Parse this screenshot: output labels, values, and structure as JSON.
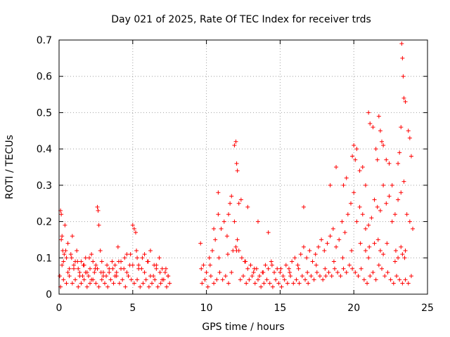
{
  "chart_data": {
    "type": "scatter",
    "title": "Day 021 of 2025, Rate Of TEC Index for receiver trds",
    "xlabel": "GPS time / hours",
    "ylabel": "ROTI / TECUs",
    "xlim": [
      0,
      25
    ],
    "ylim": [
      0,
      0.7
    ],
    "xticks": [
      0,
      5,
      10,
      15,
      20,
      25
    ],
    "xtick_labels": [
      "0",
      "5",
      "10",
      "15",
      "20",
      "25"
    ],
    "yticks": [
      0,
      0.1,
      0.2,
      0.3,
      0.4,
      0.5,
      0.6,
      0.7
    ],
    "ytick_labels": [
      "0",
      "0.1",
      "0.2",
      "0.3",
      "0.4",
      "0.5",
      "0.6",
      "0.7"
    ],
    "grid": true,
    "marker": "+",
    "series": [
      {
        "name": "ROTI",
        "color": "#ff0000",
        "x": [
          0.05,
          0.1,
          0.15,
          0.2,
          0.25,
          0.3,
          0.35,
          0.4,
          0.5,
          0.6,
          0.7,
          0.8,
          0.9,
          1.0,
          1.1,
          1.2,
          1.3,
          1.4,
          1.5,
          1.6,
          1.7,
          1.8,
          1.9,
          2.0,
          2.1,
          2.2,
          2.3,
          2.4,
          2.5,
          2.6,
          2.65,
          2.7,
          2.8,
          2.9,
          3.0,
          3.2,
          3.4,
          3.6,
          3.8,
          3.9,
          4.0,
          4.2,
          4.4,
          4.6,
          4.8,
          5.0,
          5.1,
          5.2,
          5.3,
          5.4,
          5.6,
          5.8,
          6.0,
          6.2,
          6.4,
          6.6,
          6.8,
          7.0,
          7.2,
          7.4,
          0.1,
          0.3,
          0.5,
          0.7,
          0.9,
          1.1,
          1.3,
          1.5,
          1.7,
          1.9,
          2.1,
          2.3,
          2.5,
          2.7,
          2.9,
          3.1,
          3.3,
          3.5,
          3.7,
          3.9,
          4.1,
          4.3,
          4.5,
          4.7,
          4.9,
          5.1,
          5.3,
          5.5,
          5.7,
          5.9,
          6.1,
          6.3,
          6.5,
          6.7,
          6.9,
          7.1,
          7.3,
          7.5,
          0.2,
          0.6,
          1.0,
          1.4,
          1.8,
          2.2,
          2.6,
          3.0,
          3.4,
          3.8,
          4.2,
          4.6,
          5.0,
          5.4,
          5.8,
          6.2,
          6.6,
          7.0,
          7.4,
          0.15,
          0.45,
          0.85,
          1.25,
          1.65,
          2.05,
          2.45,
          2.85,
          3.25,
          3.65,
          4.05,
          4.45,
          4.85,
          5.25,
          5.65,
          6.05,
          6.45,
          6.85,
          7.25,
          9.6,
          9.8,
          10.0,
          10.2,
          10.4,
          10.6,
          10.8,
          11.0,
          11.2,
          11.4,
          11.6,
          11.8,
          11.9,
          12.0,
          12.1,
          12.2,
          12.4,
          12.6,
          12.8,
          13.0,
          13.2,
          13.4,
          13.6,
          13.8,
          14.0,
          14.2,
          14.4,
          14.6,
          14.8,
          15.0,
          15.2,
          15.4,
          15.6,
          15.8,
          16.0,
          16.2,
          16.4,
          16.6,
          16.8,
          17.0,
          17.2,
          17.4,
          17.6,
          17.8,
          18.0,
          18.2,
          18.4,
          18.6,
          18.8,
          19.0,
          19.2,
          19.4,
          19.6,
          19.8,
          20.0,
          20.2,
          20.4,
          20.6,
          20.8,
          21.0,
          21.2,
          21.4,
          21.6,
          21.8,
          22.0,
          22.2,
          22.4,
          22.6,
          22.8,
          23.0,
          23.2,
          23.4,
          23.6,
          23.8,
          24.0,
          9.7,
          9.9,
          10.1,
          10.3,
          10.5,
          10.7,
          10.9,
          11.1,
          11.3,
          11.5,
          11.7,
          12.3,
          12.5,
          12.7,
          12.9,
          13.1,
          13.3,
          13.5,
          13.7,
          13.9,
          14.1,
          14.3,
          14.5,
          14.7,
          14.9,
          15.1,
          15.3,
          15.5,
          15.7,
          15.9,
          16.1,
          16.3,
          16.5,
          16.7,
          16.9,
          17.1,
          17.3,
          17.5,
          17.7,
          17.9,
          18.1,
          18.3,
          18.5,
          18.7,
          18.9,
          19.1,
          19.3,
          19.5,
          19.7,
          19.9,
          20.1,
          20.3,
          20.5,
          20.7,
          20.9,
          21.1,
          21.3,
          21.5,
          21.7,
          21.9,
          22.1,
          22.3,
          22.5,
          22.7,
          22.9,
          23.1,
          23.3,
          23.5,
          23.7,
          23.9,
          9.65,
          10.25,
          10.85,
          11.45,
          12.05,
          12.65,
          13.25,
          13.85,
          14.45,
          15.05,
          15.65,
          16.25,
          16.85,
          17.45,
          18.05,
          18.65,
          19.25,
          19.85,
          20.45,
          21.05,
          21.65,
          22.25,
          22.85,
          23.45,
          10.5,
          10.8,
          11.5,
          11.7,
          11.9,
          12.0,
          12.05,
          12.1,
          12.2,
          12.35,
          12.8,
          13.5,
          14.2,
          16.6,
          18.4,
          18.8,
          19.3,
          19.5,
          19.9,
          20.0,
          20.1,
          20.2,
          20.4,
          20.6,
          20.8,
          21.0,
          21.1,
          21.3,
          21.5,
          21.6,
          21.7,
          21.8,
          21.9,
          22.0,
          22.2,
          22.4,
          22.6,
          23.0,
          23.1,
          23.2,
          23.25,
          23.3,
          23.35,
          23.4,
          23.5,
          23.7,
          23.8,
          23.9,
          20.8,
          21.0,
          21.4,
          21.8,
          22.0,
          22.8,
          23.0,
          23.2,
          23.3,
          23.5
        ],
        "y": [
          0.05,
          0.23,
          0.22,
          0.16,
          0.12,
          0.09,
          0.11,
          0.19,
          0.1,
          0.14,
          0.07,
          0.11,
          0.16,
          0.08,
          0.09,
          0.12,
          0.07,
          0.06,
          0.09,
          0.05,
          0.08,
          0.1,
          0.06,
          0.05,
          0.07,
          0.11,
          0.09,
          0.06,
          0.08,
          0.24,
          0.23,
          0.19,
          0.12,
          0.09,
          0.06,
          0.05,
          0.07,
          0.09,
          0.08,
          0.06,
          0.13,
          0.09,
          0.07,
          0.11,
          0.08,
          0.19,
          0.18,
          0.17,
          0.1,
          0.08,
          0.07,
          0.11,
          0.09,
          0.12,
          0.05,
          0.08,
          0.1,
          0.07,
          0.06,
          0.05,
          0.02,
          0.04,
          0.03,
          0.05,
          0.03,
          0.04,
          0.02,
          0.03,
          0.04,
          0.02,
          0.03,
          0.04,
          0.03,
          0.02,
          0.04,
          0.03,
          0.02,
          0.04,
          0.03,
          0.05,
          0.03,
          0.04,
          0.02,
          0.05,
          0.04,
          0.03,
          0.04,
          0.02,
          0.03,
          0.04,
          0.02,
          0.03,
          0.04,
          0.02,
          0.03,
          0.04,
          0.02,
          0.03,
          0.08,
          0.06,
          0.07,
          0.05,
          0.06,
          0.04,
          0.07,
          0.05,
          0.06,
          0.05,
          0.07,
          0.06,
          0.08,
          0.07,
          0.06,
          0.05,
          0.07,
          0.04,
          0.05,
          0.15,
          0.12,
          0.1,
          0.09,
          0.08,
          0.1,
          0.07,
          0.06,
          0.08,
          0.07,
          0.09,
          0.1,
          0.11,
          0.12,
          0.1,
          0.09,
          0.08,
          0.06,
          0.07,
          0.14,
          0.08,
          0.06,
          0.1,
          0.12,
          0.15,
          0.22,
          0.18,
          0.2,
          0.16,
          0.25,
          0.12,
          0.2,
          0.13,
          0.15,
          0.12,
          0.1,
          0.09,
          0.07,
          0.08,
          0.06,
          0.07,
          0.05,
          0.06,
          0.08,
          0.07,
          0.09,
          0.06,
          0.07,
          0.06,
          0.05,
          0.08,
          0.07,
          0.09,
          0.1,
          0.08,
          0.11,
          0.13,
          0.1,
          0.12,
          0.09,
          0.11,
          0.13,
          0.15,
          0.12,
          0.14,
          0.16,
          0.18,
          0.13,
          0.15,
          0.2,
          0.17,
          0.22,
          0.25,
          0.28,
          0.2,
          0.24,
          0.22,
          0.18,
          0.19,
          0.21,
          0.26,
          0.24,
          0.23,
          0.3,
          0.25,
          0.27,
          0.2,
          0.22,
          0.26,
          0.28,
          0.31,
          0.22,
          0.2,
          0.18,
          0.03,
          0.04,
          0.02,
          0.05,
          0.03,
          0.04,
          0.06,
          0.04,
          0.05,
          0.03,
          0.06,
          0.04,
          0.05,
          0.03,
          0.04,
          0.05,
          0.03,
          0.04,
          0.02,
          0.03,
          0.04,
          0.03,
          0.02,
          0.04,
          0.03,
          0.02,
          0.04,
          0.03,
          0.05,
          0.03,
          0.04,
          0.03,
          0.05,
          0.04,
          0.03,
          0.05,
          0.04,
          0.06,
          0.05,
          0.04,
          0.05,
          0.06,
          0.05,
          0.07,
          0.06,
          0.05,
          0.07,
          0.06,
          0.08,
          0.07,
          0.06,
          0.05,
          0.07,
          0.04,
          0.03,
          0.05,
          0.06,
          0.04,
          0.08,
          0.07,
          0.05,
          0.06,
          0.04,
          0.03,
          0.05,
          0.04,
          0.03,
          0.04,
          0.03,
          0.05,
          0.07,
          0.08,
          0.1,
          0.11,
          0.12,
          0.09,
          0.07,
          0.06,
          0.08,
          0.07,
          0.06,
          0.07,
          0.06,
          0.08,
          0.07,
          0.09,
          0.1,
          0.12,
          0.14,
          0.13,
          0.15,
          0.14,
          0.12,
          0.1,
          0.18,
          0.28,
          0.22,
          0.27,
          0.41,
          0.42,
          0.36,
          0.34,
          0.25,
          0.26,
          0.24,
          0.2,
          0.17,
          0.24,
          0.3,
          0.35,
          0.3,
          0.32,
          0.38,
          0.41,
          0.37,
          0.4,
          0.34,
          0.35,
          0.3,
          0.5,
          0.47,
          0.46,
          0.4,
          0.37,
          0.49,
          0.45,
          0.42,
          0.41,
          0.37,
          0.36,
          0.3,
          0.36,
          0.39,
          0.46,
          0.69,
          0.65,
          0.6,
          0.54,
          0.53,
          0.45,
          0.43,
          0.38,
          0.12,
          0.1,
          0.14,
          0.12,
          0.11,
          0.09,
          0.1,
          0.13,
          0.11,
          0.12
        ]
      }
    ]
  }
}
